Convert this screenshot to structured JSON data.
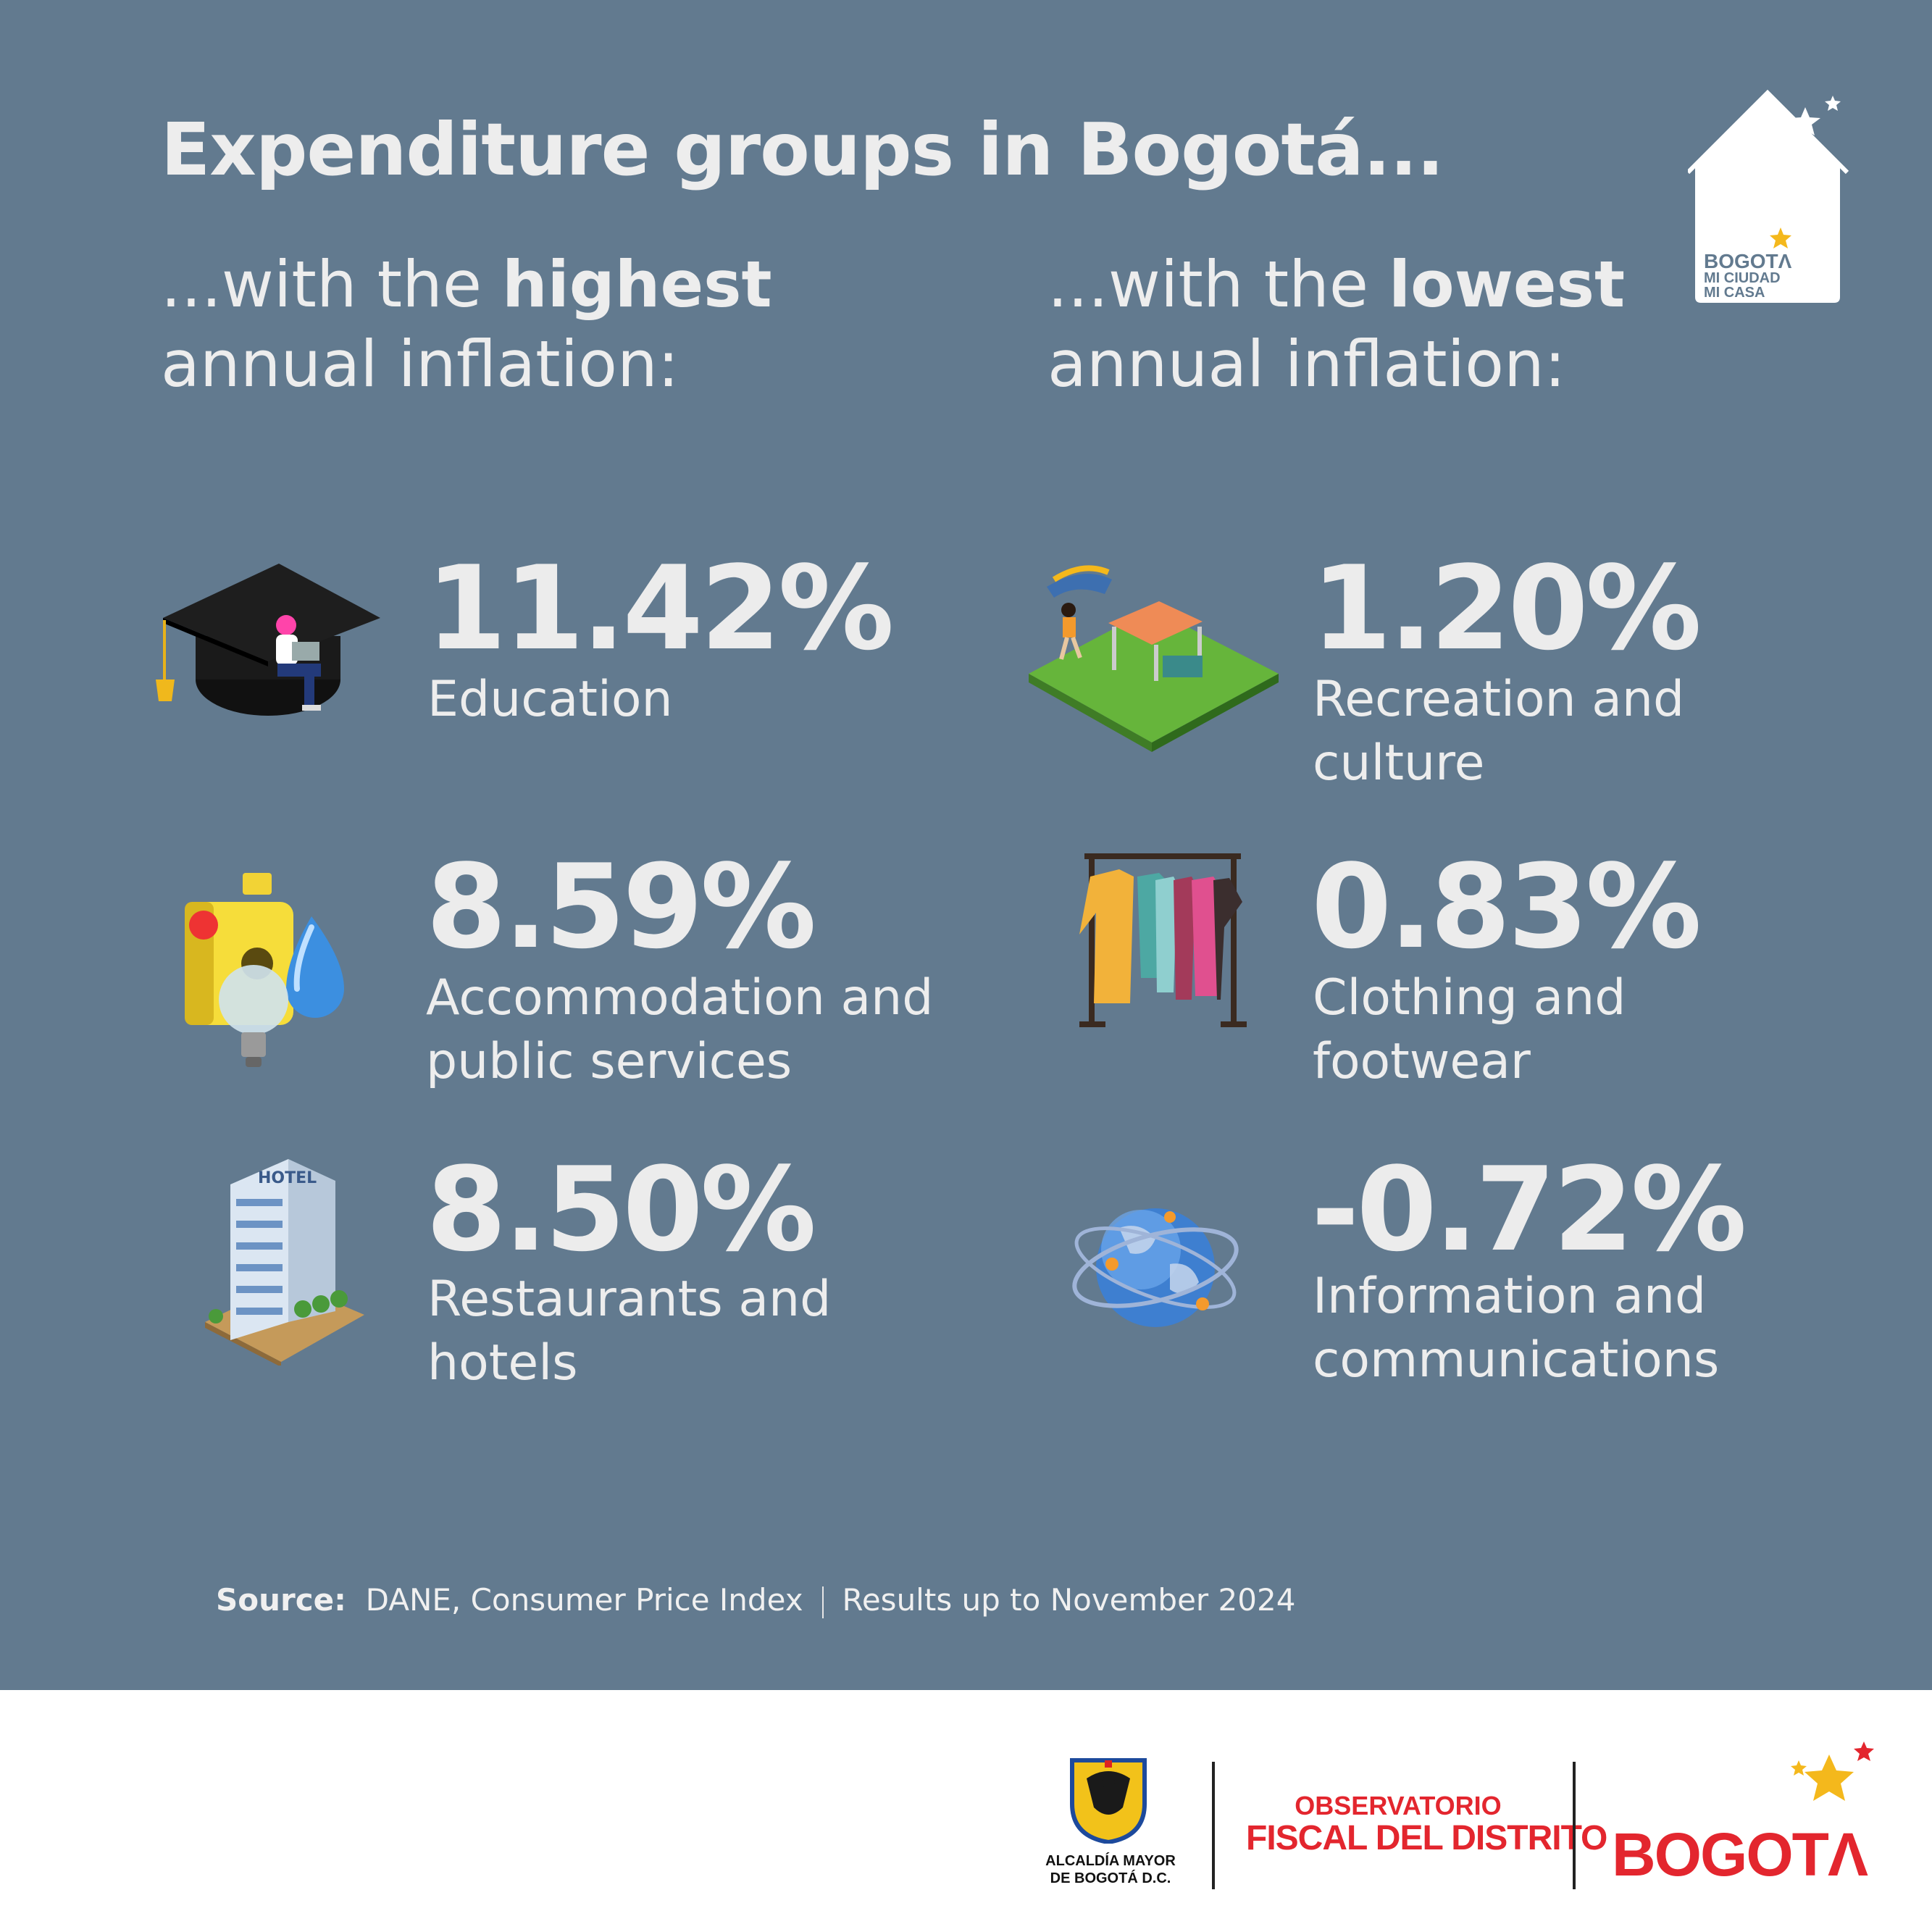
{
  "title": "Expenditure groups in Bogotá...",
  "headings": {
    "highest": {
      "prefix": "...with the ",
      "emph": "highest",
      "line2": "annual inflation:"
    },
    "lowest": {
      "prefix": "...with the ",
      "emph": "lowest",
      "line2": "annual inflation:"
    }
  },
  "highest": [
    {
      "value": "11.42%",
      "label": "Education",
      "icon": "graduation-cap-icon"
    },
    {
      "value": "8.59%",
      "label": "Accommodation and public services",
      "icon": "utilities-icon"
    },
    {
      "value": "8.50%",
      "label": "Restaurants and hotels",
      "icon": "hotel-icon"
    }
  ],
  "lowest": [
    {
      "value": "1.20%",
      "label": "Recreation and culture",
      "icon": "picnic-park-icon"
    },
    {
      "value": "0.83%",
      "label": "Clothing and footwear",
      "icon": "clothes-rack-icon"
    },
    {
      "value": "-0.72%",
      "label": "Information and communications",
      "icon": "globe-network-icon"
    }
  ],
  "source": {
    "label": "Source:",
    "text": "DANE, Consumer Price Index",
    "note": "Results up to November 2024"
  },
  "badge": {
    "line1": "BOGOTΛ",
    "line2": "MI CIUDAD",
    "line3": "MI CASA"
  },
  "footer": {
    "alcaldia_line1": "ALCALDÍA MAYOR",
    "alcaldia_line2": "DE BOGOTÁ D.C.",
    "observatorio_line1": "OBSERVATORIO",
    "observatorio_line2": "FISCAL DEL DISTRITO",
    "bogota": "BOGOTΛ"
  },
  "colors": {
    "panel": "#627a8f",
    "text": "#ededed",
    "brand_red": "#e3262e",
    "star": "#f4b81c"
  }
}
